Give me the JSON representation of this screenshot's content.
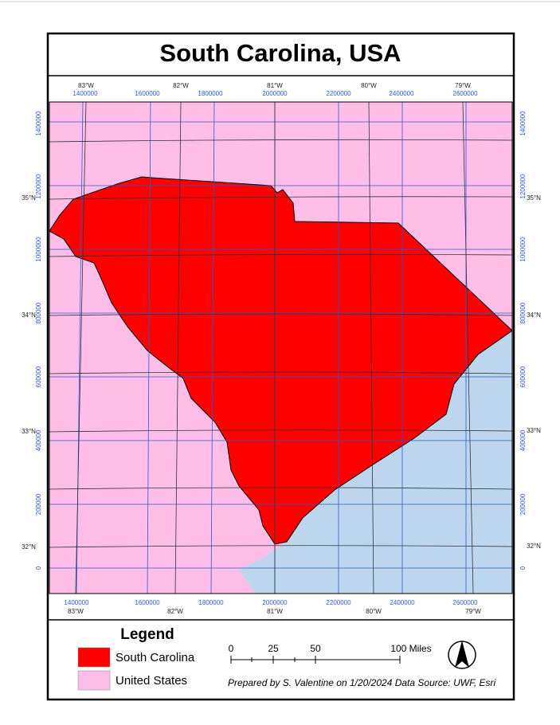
{
  "title": "South Carolina, USA",
  "graticule": {
    "top_lon_labels": [
      "83°W",
      "82°W",
      "81°W",
      "80°W",
      "79°W"
    ],
    "bottom_lon_labels": [
      "83°W",
      "82°W",
      "81°W",
      "80°W",
      "79°W"
    ],
    "left_lat_labels": [
      "35°N",
      "34°N",
      "33°N",
      "32°N"
    ],
    "right_lat_labels": [
      "35°N",
      "34°N",
      "33°N",
      "32°N"
    ]
  },
  "projected_grid": {
    "top_labels": [
      "1400000",
      "1600000",
      "1800000",
      "2000000",
      "2200000",
      "2400000",
      "2600000"
    ],
    "bottom_labels": [
      "1400000",
      "1600000",
      "1800000",
      "2000000",
      "2200000",
      "2400000",
      "2600000"
    ],
    "left_labels": [
      "1400000",
      "1200000",
      "1000000",
      "800000",
      "600000",
      "400000",
      "200000",
      "0"
    ],
    "right_labels": [
      "1400000",
      "1200000",
      "1000000",
      "800000",
      "600000",
      "400000",
      "200000",
      "0"
    ]
  },
  "legend": {
    "title": "Legend",
    "items": [
      {
        "label": "South Carolina",
        "color": "#ff0000"
      },
      {
        "label": "United States",
        "color": "#ffbee8"
      }
    ]
  },
  "scale_bar": {
    "labels": [
      "0",
      "25",
      "50",
      "100 Miles"
    ]
  },
  "credit": "Prepared by S. Valentine on 1/20/2024 Data Source: UWF, Esri"
}
